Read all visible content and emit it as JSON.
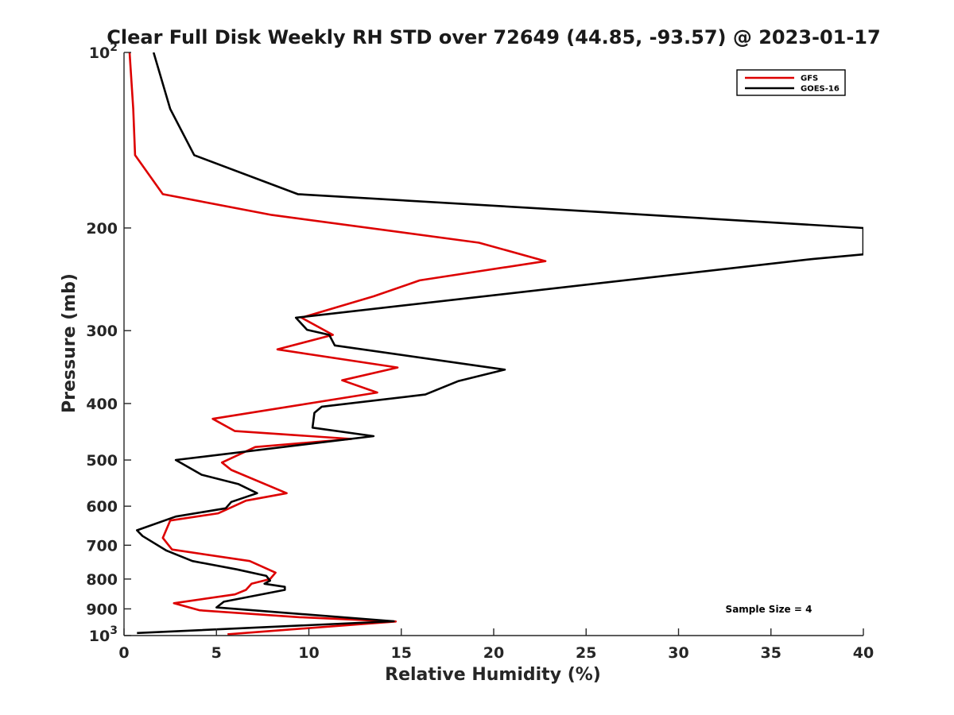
{
  "chart_data": {
    "type": "line",
    "title": "Clear Full Disk Weekly RH STD over 72649 (44.85, -93.57) @ 2023-01-17",
    "xlabel": "Relative Humidity (%)",
    "ylabel": "Pressure (mb)",
    "xlim": [
      0,
      40
    ],
    "ylim": [
      100,
      1000
    ],
    "y_scale": "log",
    "y_reversed": true,
    "grid": false,
    "legend_position": "top-right",
    "x_ticks": [
      0,
      5,
      10,
      15,
      20,
      25,
      30,
      35,
      40
    ],
    "y_ticks": [
      {
        "value": 100,
        "base": "10",
        "exp": "2"
      },
      {
        "value": 200,
        "label": "200"
      },
      {
        "value": 300,
        "label": "300"
      },
      {
        "value": 400,
        "label": "400"
      },
      {
        "value": 500,
        "label": "500"
      },
      {
        "value": 600,
        "label": "600"
      },
      {
        "value": 700,
        "label": "700"
      },
      {
        "value": 800,
        "label": "800"
      },
      {
        "value": 900,
        "label": "900"
      },
      {
        "value": 1000,
        "base": "10",
        "exp": "3"
      }
    ],
    "series": [
      {
        "name": "GFS",
        "color": "#dd0000",
        "points": [
          [
            0.3,
            100
          ],
          [
            0.5,
            125
          ],
          [
            0.6,
            150
          ],
          [
            2.1,
            175
          ],
          [
            8.0,
            190
          ],
          [
            19.2,
            212
          ],
          [
            22.8,
            228
          ],
          [
            16.0,
            246
          ],
          [
            13.5,
            262
          ],
          [
            9.6,
            285
          ],
          [
            11.3,
            305
          ],
          [
            8.3,
            323
          ],
          [
            14.8,
            347
          ],
          [
            11.8,
            365
          ],
          [
            13.7,
            383
          ],
          [
            4.8,
            425
          ],
          [
            6.0,
            446
          ],
          [
            12.3,
            460
          ],
          [
            7.1,
            475
          ],
          [
            5.3,
            505
          ],
          [
            5.8,
            520
          ],
          [
            8.8,
            570
          ],
          [
            6.6,
            587
          ],
          [
            5.1,
            617
          ],
          [
            2.5,
            635
          ],
          [
            2.1,
            680
          ],
          [
            2.6,
            712
          ],
          [
            6.8,
            745
          ],
          [
            8.2,
            780
          ],
          [
            7.9,
            800
          ],
          [
            6.9,
            815
          ],
          [
            6.6,
            835
          ],
          [
            6.0,
            850
          ],
          [
            2.7,
            880
          ],
          [
            4.1,
            905
          ],
          [
            9.5,
            930
          ],
          [
            14.7,
            946
          ],
          [
            5.6,
            995
          ]
        ]
      },
      {
        "name": "GOES-16",
        "color": "#000000",
        "points": [
          [
            1.6,
            100
          ],
          [
            2.5,
            125
          ],
          [
            3.8,
            150
          ],
          [
            9.4,
            175
          ],
          [
            26.0,
            188
          ],
          [
            40.0,
            200
          ],
          [
            40.0,
            222
          ],
          [
            37.3,
            226
          ],
          [
            9.3,
            285
          ],
          [
            9.9,
            299
          ],
          [
            11.1,
            305
          ],
          [
            11.4,
            318
          ],
          [
            20.6,
            350
          ],
          [
            18.1,
            366
          ],
          [
            16.3,
            386
          ],
          [
            10.7,
            405
          ],
          [
            10.3,
            415
          ],
          [
            10.2,
            440
          ],
          [
            13.5,
            455
          ],
          [
            2.8,
            500
          ],
          [
            4.2,
            530
          ],
          [
            6.2,
            550
          ],
          [
            7.2,
            570
          ],
          [
            5.8,
            590
          ],
          [
            5.5,
            605
          ],
          [
            2.8,
            625
          ],
          [
            0.7,
            660
          ],
          [
            1.0,
            675
          ],
          [
            2.3,
            715
          ],
          [
            3.7,
            745
          ],
          [
            6.1,
            770
          ],
          [
            7.7,
            790
          ],
          [
            7.9,
            805
          ],
          [
            7.6,
            815
          ],
          [
            8.7,
            825
          ],
          [
            8.7,
            835
          ],
          [
            5.4,
            875
          ],
          [
            5.0,
            895
          ],
          [
            14.6,
            945
          ],
          [
            0.7,
            990
          ]
        ]
      }
    ],
    "annotation": "Sample Size = 4"
  }
}
